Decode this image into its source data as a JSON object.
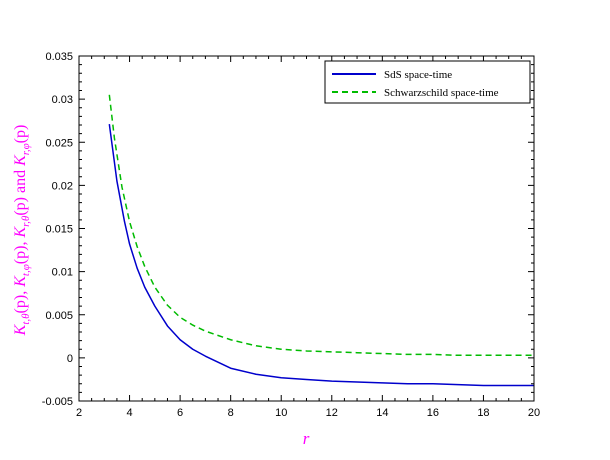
{
  "chart_data": {
    "type": "line",
    "xlabel": "r",
    "ylabel": "K_{t,θ}(p), K_{t,φ}(p), K_{r,θ}(p) and K_{r,φ}(p)",
    "ylabel_parts": {
      "s1_main": "K",
      "s1_sub": "t,θ",
      "s1_arg": "(p), ",
      "s2_main": "K",
      "s2_sub": "t,φ",
      "s2_arg": "(p), ",
      "s3_main": "K",
      "s3_sub": "r,θ",
      "s3_arg": "(p)",
      "conj": " and ",
      "s4_main": "K",
      "s4_sub": "r,φ",
      "s4_arg": "(p)"
    },
    "xlim": [
      2,
      20
    ],
    "ylim": [
      -0.005,
      0.035
    ],
    "x_ticks": [
      2,
      4,
      6,
      8,
      10,
      12,
      14,
      16,
      18,
      20
    ],
    "y_ticks": [
      -0.005,
      0,
      0.005,
      0.01,
      0.015,
      0.02,
      0.025,
      0.03,
      0.035
    ],
    "y_tick_labels": [
      "-0.005",
      "0",
      "0.005",
      "0.01",
      "0.015",
      "0.02",
      "0.025",
      "0.03",
      "0.035"
    ],
    "legend_position": "top-right",
    "series": [
      {
        "name": "SdS space-time",
        "color": "#0000cc",
        "dash": "solid",
        "x": [
          3.2,
          3.5,
          3.8,
          4,
          4.3,
          4.6,
          5,
          5.5,
          6,
          6.5,
          7,
          8,
          9,
          10,
          11,
          12,
          13,
          14,
          15,
          16,
          17,
          18,
          19,
          20
        ],
        "y": [
          0.0271,
          0.0205,
          0.0158,
          0.0132,
          0.0104,
          0.0082,
          0.006,
          0.0037,
          0.0021,
          0.001,
          0.0002,
          -0.0012,
          -0.0019,
          -0.0023,
          -0.0025,
          -0.0027,
          -0.0028,
          -0.0029,
          -0.003,
          -0.003,
          -0.0031,
          -0.0032,
          -0.0032,
          -0.0032
        ]
      },
      {
        "name": "Schwarzschild space-time",
        "color": "#00bb00",
        "dash": "dashed",
        "x": [
          3.2,
          3.4,
          3.7,
          4,
          4.3,
          4.6,
          5,
          5.5,
          6,
          6.5,
          7,
          8,
          9,
          10,
          11,
          12,
          13,
          14,
          15,
          16,
          17,
          18,
          19,
          20
        ],
        "y": [
          0.0305,
          0.0255,
          0.0198,
          0.0158,
          0.0129,
          0.0106,
          0.0082,
          0.0061,
          0.0047,
          0.0038,
          0.0031,
          0.0021,
          0.0014,
          0.001,
          0.0008,
          0.0007,
          0.0006,
          0.0005,
          0.0004,
          0.0004,
          0.0003,
          0.0003,
          0.0003,
          0.0003
        ]
      }
    ]
  }
}
